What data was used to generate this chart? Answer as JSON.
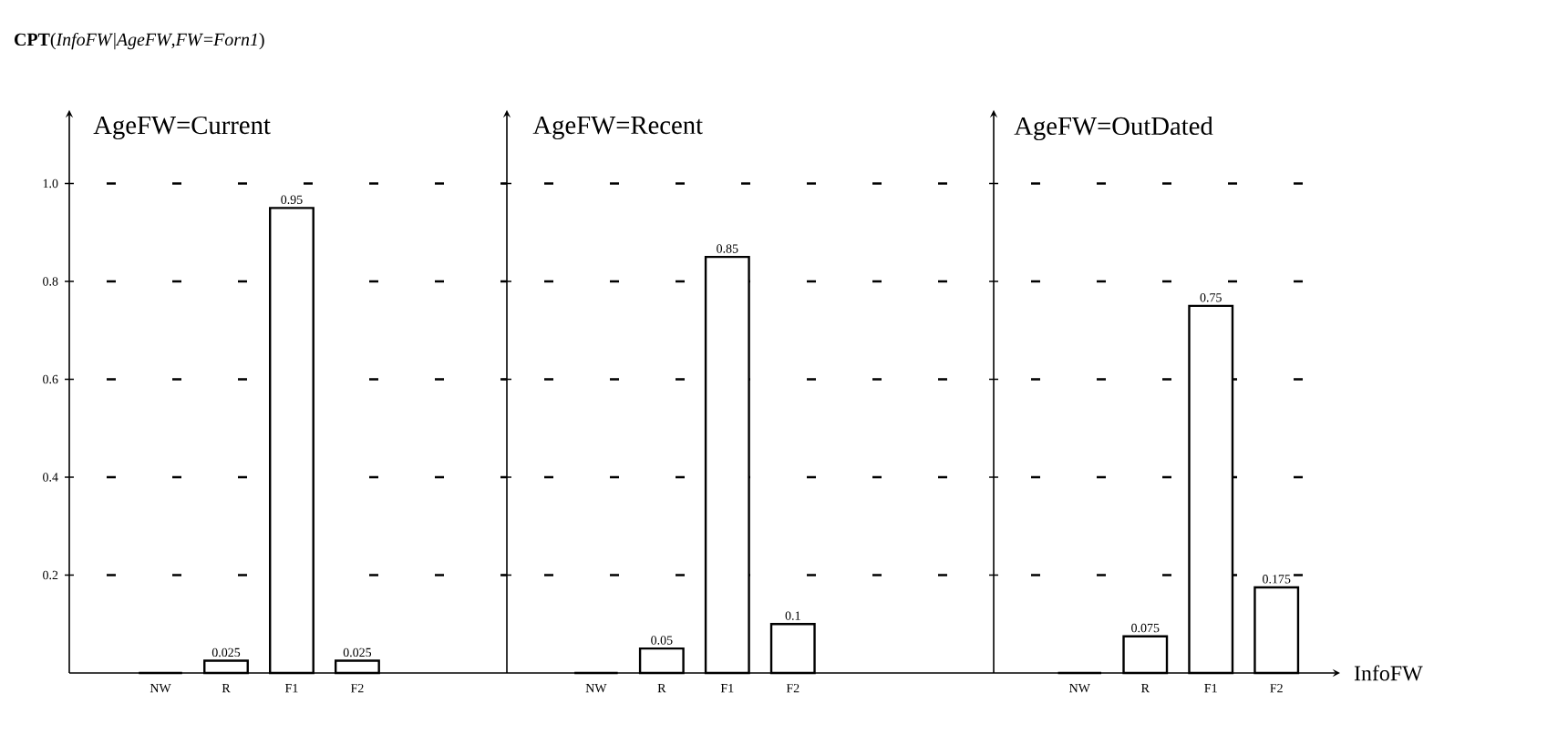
{
  "chart_data": [
    {
      "type": "bar",
      "title": "**CPT**(*InfoFW*|*AgeFW*,*FW*=*Forn1*)",
      "subtitle": "AgeFW=Current",
      "categories": [
        "NW",
        "R",
        "F1",
        "F2"
      ],
      "values": [
        0,
        0.025,
        0.95,
        0.025
      ],
      "value_labels": [
        null,
        "0.025",
        "0.95",
        "0.025"
      ],
      "color": "#000000",
      "ylim": [
        0,
        1.15
      ],
      "yticks": [
        {
          "value": 0.2,
          "label": "0.2"
        },
        {
          "value": 0.4,
          "label": "0.4"
        },
        {
          "value": 0.6,
          "label": "0.6"
        },
        {
          "value": 0.8,
          "label": "0.8"
        },
        {
          "value": 1.0,
          "label": "1.0"
        }
      ],
      "grid": "y"
    },
    {
      "type": "bar",
      "subtitle": "AgeFW=Recent",
      "categories": [
        "NW",
        "R",
        "F1",
        "F2"
      ],
      "values": [
        0,
        0.05,
        0.85,
        0.1
      ],
      "value_labels": [
        null,
        "0.05",
        "0.85",
        "0.1"
      ],
      "color": "#000000",
      "yticks": [
        {
          "value": 0.2,
          "label": null
        },
        {
          "value": 0.4,
          "label": null
        },
        {
          "value": 0.6,
          "label": null
        },
        {
          "value": 0.8,
          "label": null
        },
        {
          "value": 1.0,
          "label": null
        }
      ],
      "grid": "y"
    },
    {
      "type": "bar",
      "subtitle": "AgeFW=OutDated",
      "xlabel": "InfoFW",
      "categories": [
        "NW",
        "R",
        "F1",
        "F2"
      ],
      "values": [
        0,
        0.075,
        0.75,
        0.175
      ],
      "value_labels": [
        null,
        "0.075",
        "0.75",
        "0.175"
      ],
      "color": "#000000",
      "yticks": [
        {
          "value": 0.2,
          "label": null
        },
        {
          "value": 0.4,
          "label": null
        },
        {
          "value": 0.6,
          "label": null
        },
        {
          "value": 0.8,
          "label": null
        },
        {
          "value": 1.0,
          "label": null
        }
      ],
      "grid": "y"
    }
  ]
}
